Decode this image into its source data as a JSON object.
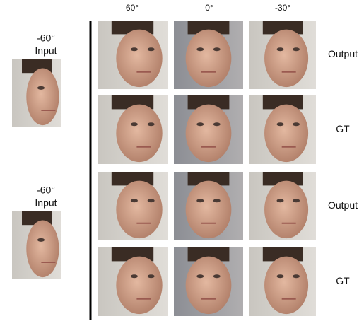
{
  "column_headers": [
    "60°",
    "0°",
    "-30°"
  ],
  "inputs": [
    {
      "angle": "-60°",
      "label": "Input"
    },
    {
      "angle": "-60°",
      "label": "Input"
    }
  ],
  "row_labels": [
    "Output",
    "GT",
    "Output",
    "GT"
  ]
}
